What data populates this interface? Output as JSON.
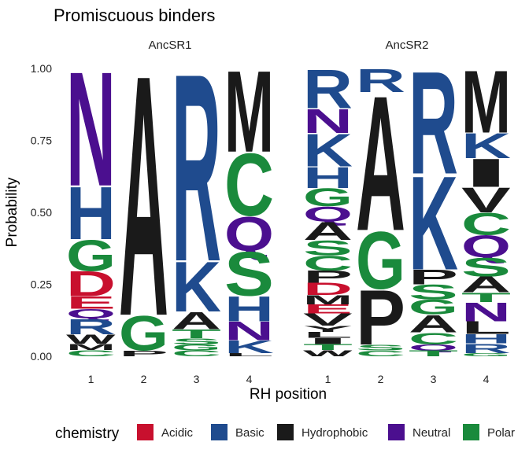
{
  "chart_data": {
    "type": "sequence-logo",
    "title": "Promiscuous binders",
    "xlabel": "RH position",
    "ylabel": "Probability",
    "ylim": [
      0,
      1
    ],
    "yticks": [
      0,
      0.25,
      0.5,
      0.75,
      1
    ],
    "ytick_labels": [
      "0.00",
      "0.25",
      "0.50",
      "0.75",
      "1.00"
    ],
    "grid": false,
    "legend": {
      "title": "chemistry",
      "position": "bottom",
      "entries": [
        {
          "label": "Acidic",
          "color": "#c8102e"
        },
        {
          "label": "Basic",
          "color": "#1f4b8e"
        },
        {
          "label": "Hydrophobic",
          "color": "#1a1a1a"
        },
        {
          "label": "Neutral",
          "color": "#4b0f8f"
        },
        {
          "label": "Polar",
          "color": "#1a8a3c"
        }
      ]
    },
    "color_map": {
      "D": "Acidic",
      "E": "Acidic",
      "H": "Basic",
      "K": "Basic",
      "R": "Basic",
      "A": "Hydrophobic",
      "M": "Hydrophobic",
      "V": "Hydrophobic",
      "I": "Hydrophobic",
      "L": "Hydrophobic",
      "W": "Hydrophobic",
      "P": "Hydrophobic",
      "F": "Hydrophobic",
      "Y": "Hydrophobic",
      "N": "Neutral",
      "Q": "Neutral",
      "G": "Polar",
      "S": "Polar",
      "C": "Polar",
      "T": "Polar"
    },
    "panels": [
      {
        "name": "AncSR1",
        "positions": [
          {
            "x": "1",
            "stack": [
              {
                "letter": "N",
                "p": 0.37
              },
              {
                "letter": "H",
                "p": 0.17
              },
              {
                "letter": "G",
                "p": 0.1
              },
              {
                "letter": "D",
                "p": 0.08
              },
              {
                "letter": "E",
                "p": 0.04
              },
              {
                "letter": "Q",
                "p": 0.03
              },
              {
                "letter": "R",
                "p": 0.05
              },
              {
                "letter": "W",
                "p": 0.03
              },
              {
                "letter": "M",
                "p": 0.02
              },
              {
                "letter": "C",
                "p": 0.02
              }
            ]
          },
          {
            "x": "2",
            "stack": [
              {
                "letter": "A",
                "p": 0.83
              },
              {
                "letter": "G",
                "p": 0.12
              },
              {
                "letter": "P",
                "p": 0.02
              }
            ]
          },
          {
            "x": "3",
            "stack": [
              {
                "letter": "R",
                "p": 0.64
              },
              {
                "letter": "K",
                "p": 0.17
              },
              {
                "letter": "A",
                "p": 0.06
              },
              {
                "letter": "T",
                "p": 0.03
              },
              {
                "letter": "S",
                "p": 0.02
              },
              {
                "letter": "G",
                "p": 0.02
              },
              {
                "letter": "C",
                "p": 0.02
              }
            ]
          },
          {
            "x": "4",
            "stack": [
              {
                "letter": "M",
                "p": 0.26
              },
              {
                "letter": "C",
                "p": 0.2
              },
              {
                "letter": "Q",
                "p": 0.11
              },
              {
                "letter": "S",
                "p": 0.14
              },
              {
                "letter": "H",
                "p": 0.08
              },
              {
                "letter": "N",
                "p": 0.06
              },
              {
                "letter": "K",
                "p": 0.04
              },
              {
                "letter": "L",
                "p": 0.01
              }
            ]
          }
        ]
      },
      {
        "name": "AncSR2",
        "positions": [
          {
            "x": "1",
            "stack": [
              {
                "letter": "R",
                "p": 0.13
              },
              {
                "letter": "N",
                "p": 0.08
              },
              {
                "letter": "K",
                "p": 0.11
              },
              {
                "letter": "H",
                "p": 0.07
              },
              {
                "letter": "G",
                "p": 0.06
              },
              {
                "letter": "Q",
                "p": 0.05
              },
              {
                "letter": "A",
                "p": 0.06
              },
              {
                "letter": "S",
                "p": 0.05
              },
              {
                "letter": "C",
                "p": 0.05
              },
              {
                "letter": "P",
                "p": 0.04
              },
              {
                "letter": "D",
                "p": 0.04
              },
              {
                "letter": "M",
                "p": 0.03
              },
              {
                "letter": "E",
                "p": 0.03
              },
              {
                "letter": "V",
                "p": 0.04
              },
              {
                "letter": "Y",
                "p": 0.02
              },
              {
                "letter": "L",
                "p": 0.02
              },
              {
                "letter": "I",
                "p": 0.02
              },
              {
                "letter": "T",
                "p": 0.02
              },
              {
                "letter": "W",
                "p": 0.02
              }
            ]
          },
          {
            "x": "2",
            "stack": [
              {
                "letter": "R",
                "p": 0.08
              },
              {
                "letter": "A",
                "p": 0.47
              },
              {
                "letter": "G",
                "p": 0.2
              },
              {
                "letter": "P",
                "p": 0.19
              },
              {
                "letter": "S",
                "p": 0.02
              },
              {
                "letter": "C",
                "p": 0.02
              }
            ]
          },
          {
            "x": "3",
            "stack": [
              {
                "letter": "R",
                "p": 0.35
              },
              {
                "letter": "K",
                "p": 0.32
              },
              {
                "letter": "P",
                "p": 0.05
              },
              {
                "letter": "S",
                "p": 0.05
              },
              {
                "letter": "G",
                "p": 0.05
              },
              {
                "letter": "A",
                "p": 0.06
              },
              {
                "letter": "C",
                "p": 0.04
              },
              {
                "letter": "Q",
                "p": 0.02
              },
              {
                "letter": "T",
                "p": 0.02
              }
            ]
          },
          {
            "x": "4",
            "stack": [
              {
                "letter": "M",
                "p": 0.2
              },
              {
                "letter": "K",
                "p": 0.08
              },
              {
                "letter": "I",
                "p": 0.09
              },
              {
                "letter": "V",
                "p": 0.08
              },
              {
                "letter": "C",
                "p": 0.07
              },
              {
                "letter": "Q",
                "p": 0.07
              },
              {
                "letter": "S",
                "p": 0.06
              },
              {
                "letter": "A",
                "p": 0.05
              },
              {
                "letter": "T",
                "p": 0.03
              },
              {
                "letter": "N",
                "p": 0.06
              },
              {
                "letter": "L",
                "p": 0.04
              },
              {
                "letter": "H",
                "p": 0.03
              },
              {
                "letter": "R",
                "p": 0.03
              },
              {
                "letter": "G",
                "p": 0.01
              }
            ]
          }
        ]
      }
    ]
  }
}
